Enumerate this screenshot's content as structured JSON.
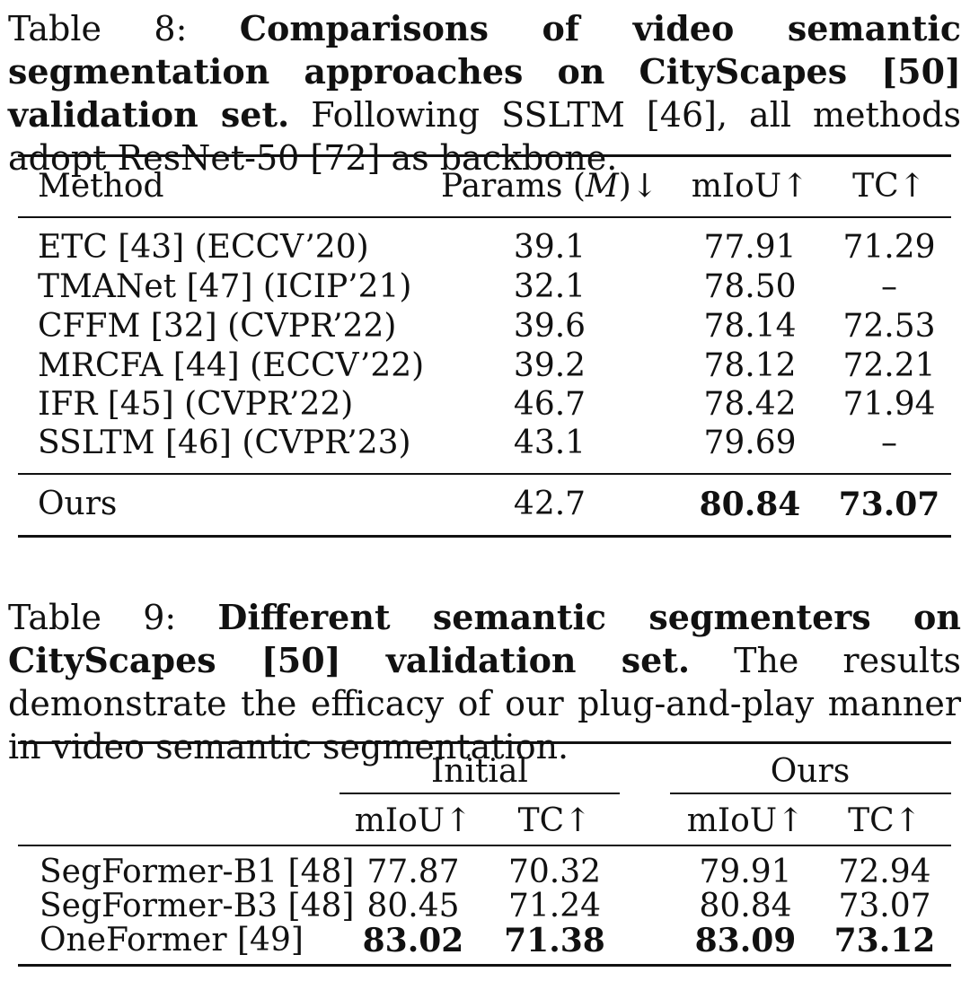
{
  "table8": {
    "caption_label": "Table 8:",
    "caption_bold": "Comparisons of video semantic segmentation approaches on CityScapes [50] validation set.",
    "caption_rest": "Following SSLTM [46], all methods adopt ResNet-50 [72] as backbone.",
    "headers": {
      "method": "Method",
      "params_pre": "Params (",
      "params_var": "M",
      "params_post": ")↓",
      "miou": "mIoU↑",
      "tc": "TC↑"
    },
    "rows": [
      {
        "method": "ETC [43] (ECCV’20)",
        "params": "39.1",
        "miou": "77.91",
        "tc": "71.29"
      },
      {
        "method": "TMANet [47] (ICIP’21)",
        "params": "32.1",
        "miou": "78.50",
        "tc": "–"
      },
      {
        "method": "CFFM [32] (CVPR’22)",
        "params": "39.6",
        "miou": "78.14",
        "tc": "72.53"
      },
      {
        "method": "MRCFA [44] (ECCV’22)",
        "params": "39.2",
        "miou": "78.12",
        "tc": "72.21"
      },
      {
        "method": "IFR [45] (CVPR’22)",
        "params": "46.7",
        "miou": "78.42",
        "tc": "71.94"
      },
      {
        "method": "SSLTM [46] (CVPR’23)",
        "params": "43.1",
        "miou": "79.69",
        "tc": "–"
      }
    ],
    "ours": {
      "method": "Ours",
      "params": "42.7",
      "miou": "80.84",
      "tc": "73.07"
    }
  },
  "table9": {
    "caption_label": "Table 9:",
    "caption_bold": "Different semantic segmenters on CityScapes [50] validation set.",
    "caption_rest": "The results demonstrate the efficacy of our plug-and-play manner in video semantic segmentation.",
    "group_initial": "Initial",
    "group_ours": "Ours",
    "col_miou": "mIoU↑",
    "col_tc": "TC↑",
    "rows": [
      {
        "name": "SegFormer-B1 [48]",
        "init_miou": "77.87",
        "init_tc": "70.32",
        "ours_miou": "79.91",
        "ours_tc": "72.94"
      },
      {
        "name": "SegFormer-B3 [48]",
        "init_miou": "80.45",
        "init_tc": "71.24",
        "ours_miou": "80.84",
        "ours_tc": "73.07"
      },
      {
        "name": "OneFormer [49]",
        "init_miou": "83.02",
        "init_tc": "71.38",
        "ours_miou": "83.09",
        "ours_tc": "73.12"
      }
    ]
  }
}
